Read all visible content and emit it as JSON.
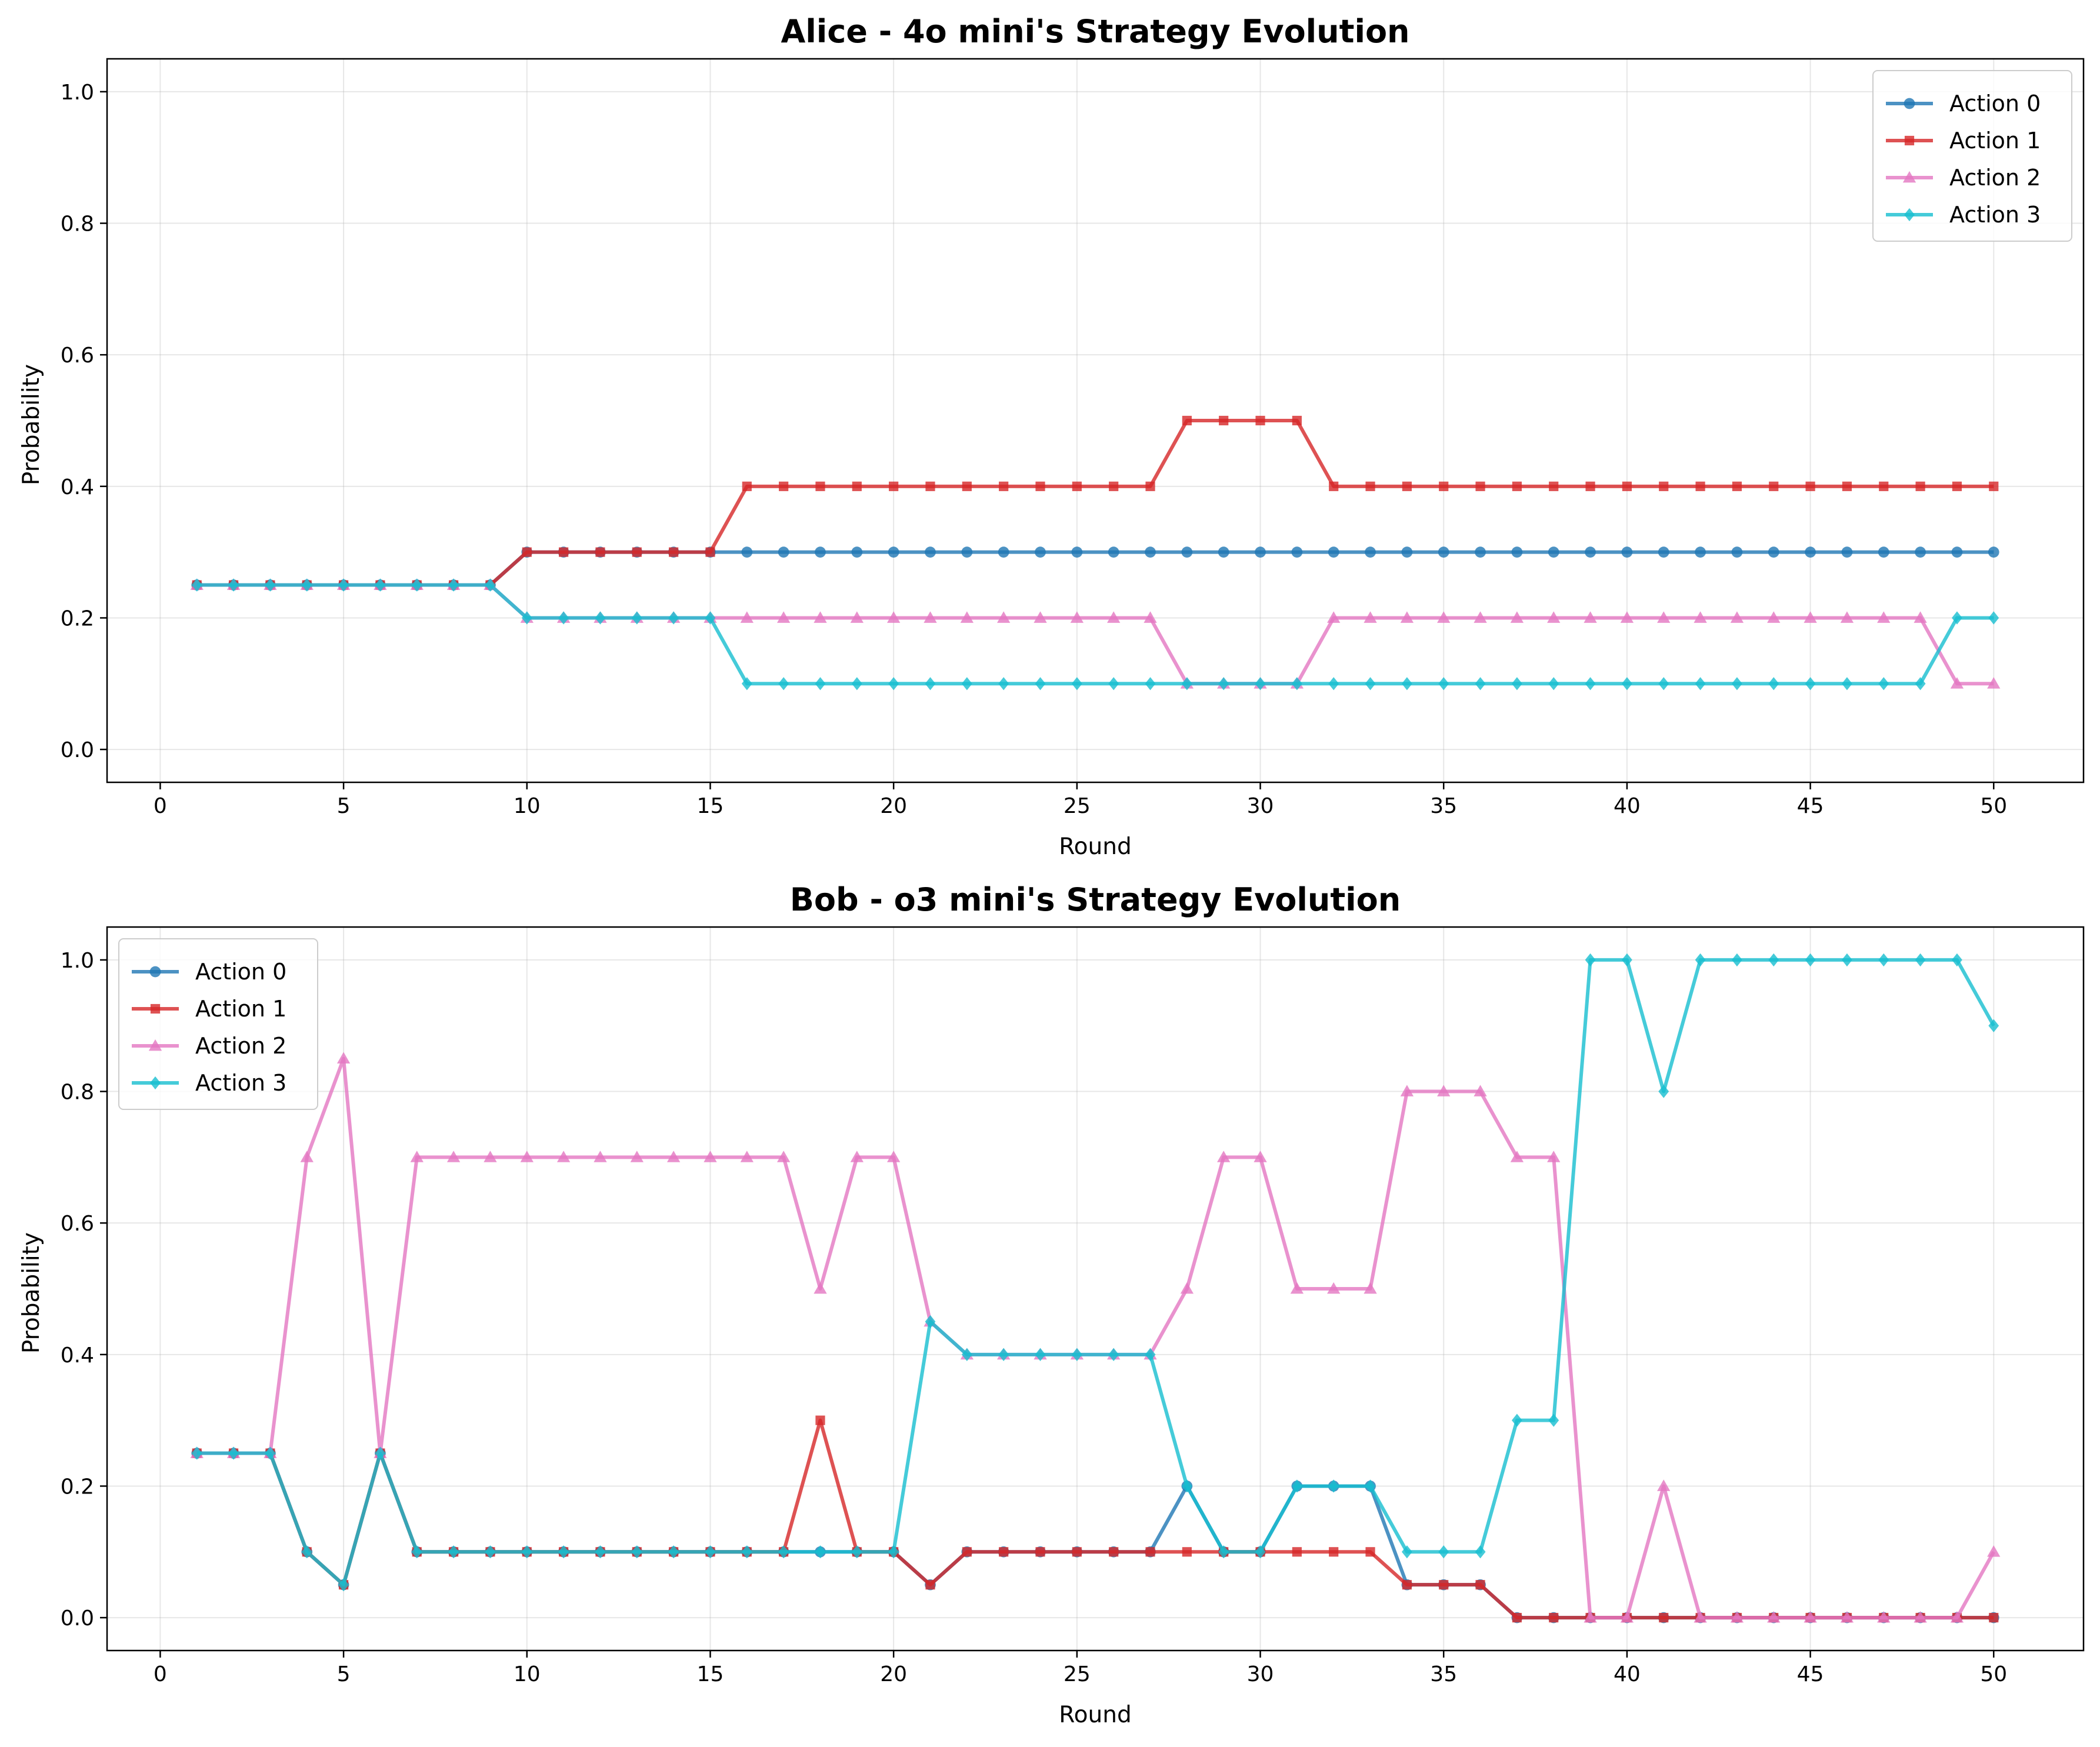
{
  "chart_data": [
    {
      "type": "line",
      "title": "Alice - 4o mini's Strategy Evolution",
      "xlabel": "Round",
      "ylabel": "Probability",
      "xlim": [
        -1.45,
        52.45
      ],
      "ylim": [
        -0.05,
        1.05
      ],
      "xticks": [
        0,
        5,
        10,
        15,
        20,
        25,
        30,
        35,
        40,
        45,
        50
      ],
      "yticks": [
        0.0,
        0.2,
        0.4,
        0.6,
        0.8,
        1.0
      ],
      "grid": true,
      "legend_position": "upper-right",
      "x": [
        1,
        2,
        3,
        4,
        5,
        6,
        7,
        8,
        9,
        10,
        11,
        12,
        13,
        14,
        15,
        16,
        17,
        18,
        19,
        20,
        21,
        22,
        23,
        24,
        25,
        26,
        27,
        28,
        29,
        30,
        31,
        32,
        33,
        34,
        35,
        36,
        37,
        38,
        39,
        40,
        41,
        42,
        43,
        44,
        45,
        46,
        47,
        48,
        49,
        50
      ],
      "series": [
        {
          "name": "Action 0",
          "color": "#1f77b4",
          "marker": "circle",
          "values": [
            0.25,
            0.25,
            0.25,
            0.25,
            0.25,
            0.25,
            0.25,
            0.25,
            0.25,
            0.3,
            0.3,
            0.3,
            0.3,
            0.3,
            0.3,
            0.3,
            0.3,
            0.3,
            0.3,
            0.3,
            0.3,
            0.3,
            0.3,
            0.3,
            0.3,
            0.3,
            0.3,
            0.3,
            0.3,
            0.3,
            0.3,
            0.3,
            0.3,
            0.3,
            0.3,
            0.3,
            0.3,
            0.3,
            0.3,
            0.3,
            0.3,
            0.3,
            0.3,
            0.3,
            0.3,
            0.3,
            0.3,
            0.3,
            0.3,
            0.3
          ]
        },
        {
          "name": "Action 1",
          "color": "#d62728",
          "marker": "square",
          "values": [
            0.25,
            0.25,
            0.25,
            0.25,
            0.25,
            0.25,
            0.25,
            0.25,
            0.25,
            0.3,
            0.3,
            0.3,
            0.3,
            0.3,
            0.3,
            0.4,
            0.4,
            0.4,
            0.4,
            0.4,
            0.4,
            0.4,
            0.4,
            0.4,
            0.4,
            0.4,
            0.4,
            0.5,
            0.5,
            0.5,
            0.5,
            0.4,
            0.4,
            0.4,
            0.4,
            0.4,
            0.4,
            0.4,
            0.4,
            0.4,
            0.4,
            0.4,
            0.4,
            0.4,
            0.4,
            0.4,
            0.4,
            0.4,
            0.4,
            0.4
          ]
        },
        {
          "name": "Action 2",
          "color": "#e377c2",
          "marker": "triangle",
          "values": [
            0.25,
            0.25,
            0.25,
            0.25,
            0.25,
            0.25,
            0.25,
            0.25,
            0.25,
            0.2,
            0.2,
            0.2,
            0.2,
            0.2,
            0.2,
            0.2,
            0.2,
            0.2,
            0.2,
            0.2,
            0.2,
            0.2,
            0.2,
            0.2,
            0.2,
            0.2,
            0.2,
            0.1,
            0.1,
            0.1,
            0.1,
            0.2,
            0.2,
            0.2,
            0.2,
            0.2,
            0.2,
            0.2,
            0.2,
            0.2,
            0.2,
            0.2,
            0.2,
            0.2,
            0.2,
            0.2,
            0.2,
            0.2,
            0.1,
            0.1
          ]
        },
        {
          "name": "Action 3",
          "color": "#17becf",
          "marker": "diamond",
          "values": [
            0.25,
            0.25,
            0.25,
            0.25,
            0.25,
            0.25,
            0.25,
            0.25,
            0.25,
            0.2,
            0.2,
            0.2,
            0.2,
            0.2,
            0.2,
            0.1,
            0.1,
            0.1,
            0.1,
            0.1,
            0.1,
            0.1,
            0.1,
            0.1,
            0.1,
            0.1,
            0.1,
            0.1,
            0.1,
            0.1,
            0.1,
            0.1,
            0.1,
            0.1,
            0.1,
            0.1,
            0.1,
            0.1,
            0.1,
            0.1,
            0.1,
            0.1,
            0.1,
            0.1,
            0.1,
            0.1,
            0.1,
            0.1,
            0.2,
            0.2
          ]
        }
      ]
    },
    {
      "type": "line",
      "title": "Bob - o3 mini's Strategy Evolution",
      "xlabel": "Round",
      "ylabel": "Probability",
      "xlim": [
        -1.45,
        52.45
      ],
      "ylim": [
        -0.05,
        1.05
      ],
      "xticks": [
        0,
        5,
        10,
        15,
        20,
        25,
        30,
        35,
        40,
        45,
        50
      ],
      "yticks": [
        0.0,
        0.2,
        0.4,
        0.6,
        0.8,
        1.0
      ],
      "grid": true,
      "legend_position": "upper-left",
      "x": [
        1,
        2,
        3,
        4,
        5,
        6,
        7,
        8,
        9,
        10,
        11,
        12,
        13,
        14,
        15,
        16,
        17,
        18,
        19,
        20,
        21,
        22,
        23,
        24,
        25,
        26,
        27,
        28,
        29,
        30,
        31,
        32,
        33,
        34,
        35,
        36,
        37,
        38,
        39,
        40,
        41,
        42,
        43,
        44,
        45,
        46,
        47,
        48,
        49,
        50
      ],
      "series": [
        {
          "name": "Action 0",
          "color": "#1f77b4",
          "marker": "circle",
          "values": [
            0.25,
            0.25,
            0.25,
            0.1,
            0.05,
            0.25,
            0.1,
            0.1,
            0.1,
            0.1,
            0.1,
            0.1,
            0.1,
            0.1,
            0.1,
            0.1,
            0.1,
            0.1,
            0.1,
            0.1,
            0.05,
            0.1,
            0.1,
            0.1,
            0.1,
            0.1,
            0.1,
            0.2,
            0.1,
            0.1,
            0.2,
            0.2,
            0.2,
            0.05,
            0.05,
            0.05,
            0,
            0,
            0,
            0,
            0,
            0,
            0,
            0,
            0,
            0,
            0,
            0,
            0,
            0
          ]
        },
        {
          "name": "Action 1",
          "color": "#d62728",
          "marker": "square",
          "values": [
            0.25,
            0.25,
            0.25,
            0.1,
            0.05,
            0.25,
            0.1,
            0.1,
            0.1,
            0.1,
            0.1,
            0.1,
            0.1,
            0.1,
            0.1,
            0.1,
            0.1,
            0.3,
            0.1,
            0.1,
            0.05,
            0.1,
            0.1,
            0.1,
            0.1,
            0.1,
            0.1,
            0.1,
            0.1,
            0.1,
            0.1,
            0.1,
            0.1,
            0.05,
            0.05,
            0.05,
            0,
            0,
            0,
            0,
            0,
            0,
            0,
            0,
            0,
            0,
            0,
            0,
            0,
            0
          ]
        },
        {
          "name": "Action 2",
          "color": "#e377c2",
          "marker": "triangle",
          "values": [
            0.25,
            0.25,
            0.25,
            0.7,
            0.85,
            0.25,
            0.7,
            0.7,
            0.7,
            0.7,
            0.7,
            0.7,
            0.7,
            0.7,
            0.7,
            0.7,
            0.7,
            0.5,
            0.7,
            0.7,
            0.45,
            0.4,
            0.4,
            0.4,
            0.4,
            0.4,
            0.4,
            0.5,
            0.7,
            0.7,
            0.5,
            0.5,
            0.5,
            0.8,
            0.8,
            0.8,
            0.7,
            0.7,
            0,
            0,
            0.2,
            0,
            0,
            0,
            0,
            0,
            0,
            0,
            0,
            0.1
          ]
        },
        {
          "name": "Action 3",
          "color": "#17becf",
          "marker": "diamond",
          "values": [
            0.25,
            0.25,
            0.25,
            0.1,
            0.05,
            0.25,
            0.1,
            0.1,
            0.1,
            0.1,
            0.1,
            0.1,
            0.1,
            0.1,
            0.1,
            0.1,
            0.1,
            0.1,
            0.1,
            0.1,
            0.45,
            0.4,
            0.4,
            0.4,
            0.4,
            0.4,
            0.4,
            0.2,
            0.1,
            0.1,
            0.2,
            0.2,
            0.2,
            0.1,
            0.1,
            0.1,
            0.3,
            0.3,
            1,
            1,
            0.8,
            1,
            1,
            1,
            1,
            1,
            1,
            1,
            1,
            0.9
          ]
        }
      ]
    }
  ]
}
